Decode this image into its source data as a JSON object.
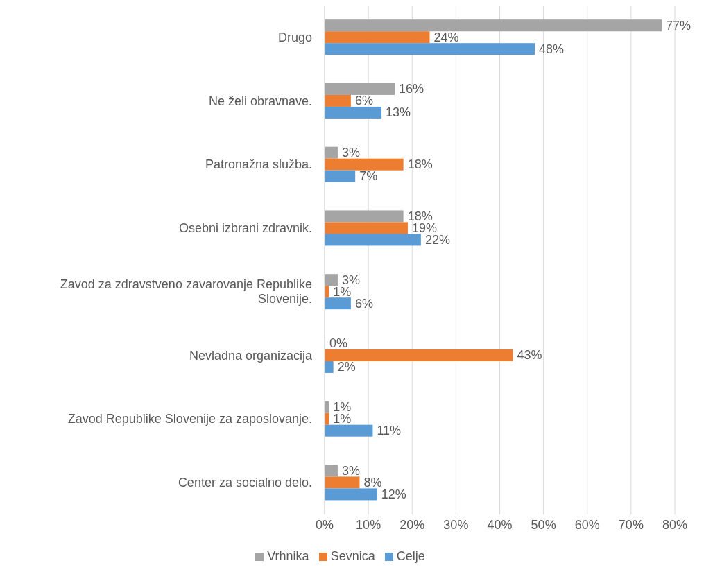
{
  "chart_data": {
    "type": "bar",
    "orientation": "horizontal",
    "categories": [
      "Drugo",
      "Ne želi obravnave.",
      "Patronažna služba.",
      "Osebni izbrani zdravnik.",
      "Zavod za zdravstveno zavarovanje Republike Slovenije.",
      "Nevladna organizacija",
      "Zavod Republike Slovenije za zaposlovanje.",
      "Center za socialno delo."
    ],
    "series": [
      {
        "name": "Vrhnika",
        "color": "#a5a5a5",
        "values": [
          77,
          16,
          3,
          18,
          3,
          0,
          1,
          3
        ],
        "value_labels": [
          "77%",
          "16%",
          "3%",
          "18%",
          "3%",
          "0%",
          "1%",
          "3%"
        ]
      },
      {
        "name": "Sevnica",
        "color": "#ed7d31",
        "values": [
          24,
          6,
          18,
          19,
          1,
          43,
          1,
          8
        ],
        "value_labels": [
          "24%",
          "6%",
          "18%",
          "19%",
          "1%",
          "43%",
          "1%",
          "8%"
        ]
      },
      {
        "name": "Celje",
        "color": "#5b9bd5",
        "values": [
          48,
          13,
          7,
          22,
          6,
          2,
          11,
          12
        ],
        "value_labels": [
          "48%",
          "13%",
          "7%",
          "22%",
          "6%",
          "2%",
          "11%",
          "12%"
        ]
      }
    ],
    "xlim": [
      0,
      80
    ],
    "xticks": [
      {
        "value": 0,
        "label": "0%"
      },
      {
        "value": 10,
        "label": "10%"
      },
      {
        "value": 20,
        "label": "20%"
      },
      {
        "value": 30,
        "label": "30%"
      },
      {
        "value": 40,
        "label": "40%"
      },
      {
        "value": 50,
        "label": "50%"
      },
      {
        "value": 60,
        "label": "60%"
      },
      {
        "value": 70,
        "label": "70%"
      },
      {
        "value": 80,
        "label": "80%"
      }
    ],
    "grid": "x",
    "legend": "bottom"
  }
}
